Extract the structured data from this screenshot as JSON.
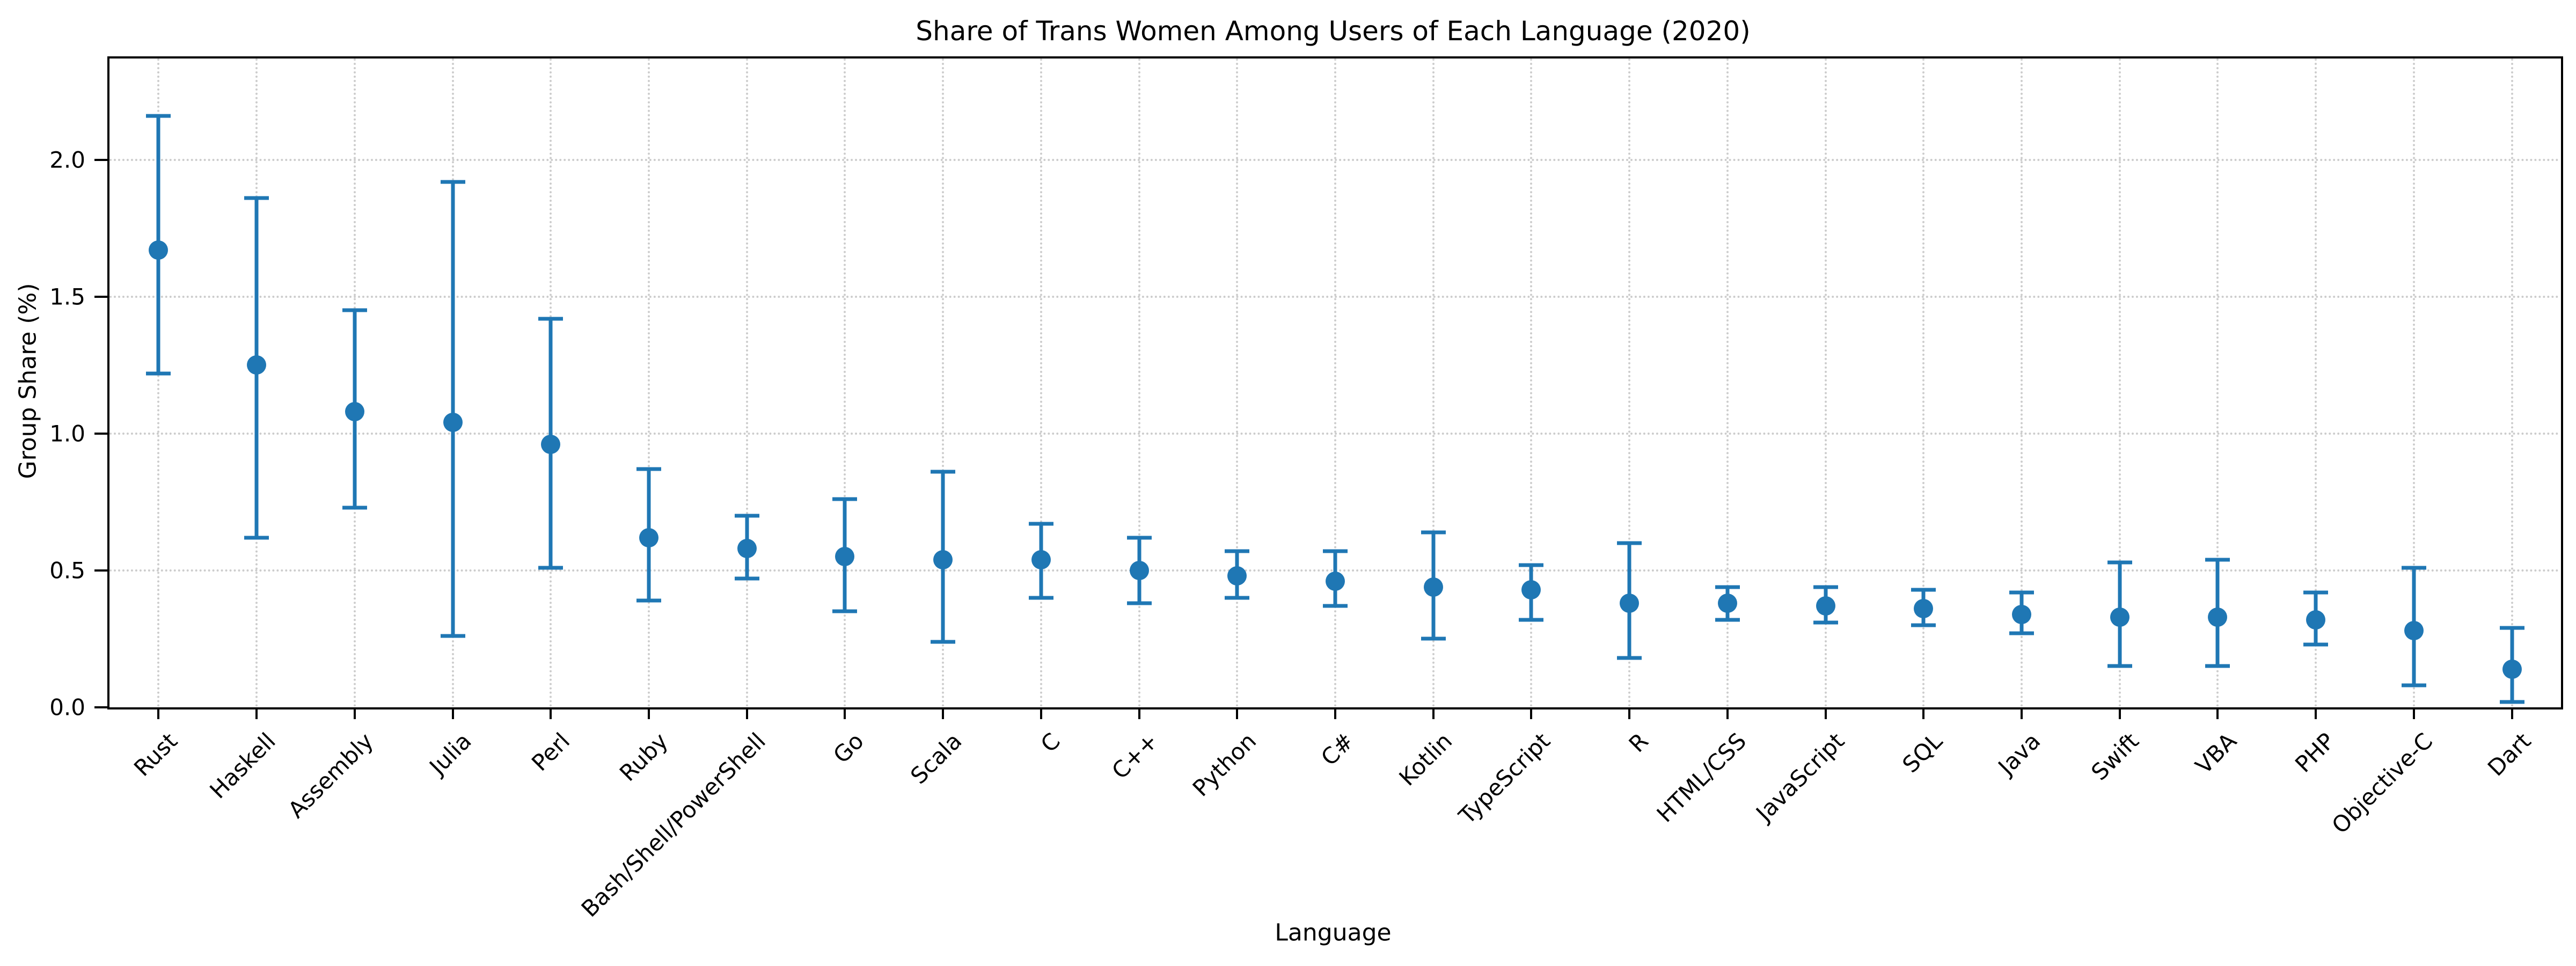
{
  "figure": {
    "title": "Share of Trans Women Among Users of Each Language (2020)",
    "xlabel": "Language",
    "ylabel": "Group Share (%)"
  },
  "axes": {
    "ytick_labels": [
      "0.0",
      "0.5",
      "1.0",
      "1.5",
      "2.0"
    ],
    "ytick_values": [
      0.0,
      0.5,
      1.0,
      1.5,
      2.0
    ],
    "ylim": [
      0,
      2.37
    ],
    "grid": "dotted both axes"
  },
  "colors": {
    "marker": "#1f77b4",
    "grid": "#cccccc",
    "axis": "#000000",
    "background": "#ffffff"
  },
  "chart_data": {
    "type": "scatter",
    "subtype": "points-with-error-bars",
    "title": "Share of Trans Women Among Users of Each Language (2020)",
    "xlabel": "Language",
    "ylabel": "Group Share (%)",
    "ylim": [
      0,
      2.37
    ],
    "grid": true,
    "legend_position": "none",
    "categories": [
      "Rust",
      "Haskell",
      "Assembly",
      "Julia",
      "Perl",
      "Ruby",
      "Bash/Shell/PowerShell",
      "Go",
      "Scala",
      "C",
      "C++",
      "Python",
      "C#",
      "Kotlin",
      "TypeScript",
      "R",
      "HTML/CSS",
      "JavaScript",
      "SQL",
      "Java",
      "Swift",
      "VBA",
      "PHP",
      "Objective-C",
      "Dart"
    ],
    "series": [
      {
        "name": "Group Share (%)",
        "values": [
          1.67,
          1.25,
          1.08,
          1.04,
          0.96,
          0.62,
          0.58,
          0.55,
          0.54,
          0.54,
          0.5,
          0.48,
          0.46,
          0.44,
          0.43,
          0.38,
          0.38,
          0.37,
          0.36,
          0.34,
          0.33,
          0.33,
          0.32,
          0.28,
          0.14
        ],
        "ci_low": [
          1.22,
          0.62,
          0.73,
          0.26,
          0.51,
          0.39,
          0.47,
          0.35,
          0.24,
          0.4,
          0.38,
          0.4,
          0.37,
          0.25,
          0.32,
          0.18,
          0.32,
          0.31,
          0.3,
          0.27,
          0.15,
          0.15,
          0.23,
          0.08,
          0.02
        ],
        "ci_high": [
          2.16,
          1.86,
          1.45,
          1.92,
          1.42,
          0.87,
          0.7,
          0.76,
          0.86,
          0.67,
          0.62,
          0.57,
          0.57,
          0.64,
          0.52,
          0.6,
          0.44,
          0.44,
          0.43,
          0.42,
          0.53,
          0.54,
          0.42,
          0.51,
          0.29
        ]
      }
    ]
  }
}
